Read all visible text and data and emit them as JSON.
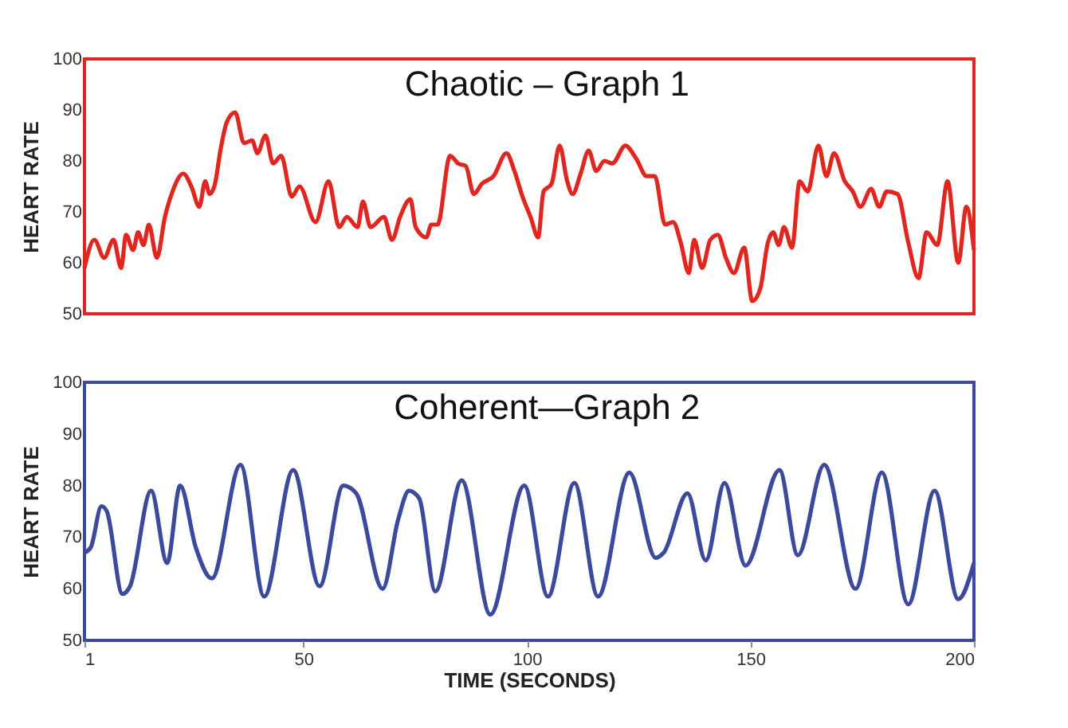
{
  "chart_data": [
    {
      "type": "line",
      "title": "Chaotic – Graph 1",
      "ylabel": "HEART RATE",
      "xlim": [
        1,
        200
      ],
      "ylim": [
        50,
        100
      ],
      "yticks": [
        50,
        60,
        70,
        80,
        90,
        100
      ],
      "grid": false,
      "tick_labels": "y",
      "marker": "none",
      "line_style": "solid",
      "series": [
        {
          "color": "#e0261f",
          "x": [
            1,
            3.2,
            5.4,
            7.5,
            9.2,
            10.3,
            11.9,
            13,
            14.2,
            15.4,
            17.2,
            19,
            20.7,
            23.1,
            24.9,
            26.7,
            28,
            29,
            30.2,
            31.4,
            32.8,
            34.7,
            36.7,
            38.5,
            39.7,
            41.5,
            43.2,
            45,
            47.4,
            49.1,
            52.7,
            55.6,
            58,
            59.7,
            62.1,
            63.3,
            65,
            68,
            69.8,
            71.6,
            73.9,
            75.1,
            77.5,
            78.6,
            80,
            82.8,
            84.6,
            86.3,
            88.1,
            89.9,
            92.5,
            95.4,
            97.2,
            99,
            100.8,
            102.5,
            103.7,
            105.5,
            107.3,
            109,
            110.2,
            112,
            113.8,
            115.5,
            117.3,
            119.1,
            122,
            124.4,
            126.8,
            128.6,
            130.9,
            132.7,
            134.4,
            136.2,
            137.4,
            139.2,
            141,
            142.7,
            144.5,
            146.3,
            148.6,
            150.4,
            152.2,
            153.9,
            155.1,
            156.3,
            157.5,
            159.3,
            161,
            162.8,
            165.2,
            167,
            168.7,
            171.1,
            172.9,
            174.6,
            177,
            178.8,
            180.5,
            182.9,
            185.3,
            187.6,
            189.4,
            191.8,
            194.1,
            196.5,
            198.3,
            200
          ],
          "values": [
            59,
            64.5,
            61,
            64.5,
            59,
            65.5,
            62.5,
            66,
            63.5,
            67.5,
            61,
            69,
            74,
            77.5,
            75,
            71,
            76,
            73.5,
            75.5,
            82,
            87.5,
            89.5,
            83.5,
            84,
            81.5,
            85,
            79.5,
            81,
            73,
            75,
            68,
            76,
            67,
            69,
            67,
            72,
            67,
            69,
            64.5,
            69,
            72.5,
            67,
            65,
            67.5,
            67.5,
            81,
            79.5,
            79,
            73.5,
            75.5,
            77,
            81.5,
            78,
            73,
            69,
            65,
            74,
            75.5,
            83,
            76,
            73.5,
            77.5,
            82,
            78,
            80,
            79.5,
            83,
            80.5,
            77,
            77,
            67.5,
            68,
            64,
            58,
            64.5,
            59,
            64.5,
            65.5,
            61,
            58,
            63,
            52.5,
            55,
            64,
            66,
            63.5,
            67,
            63,
            76,
            74,
            83,
            77,
            81.5,
            76,
            74,
            71,
            74.5,
            71,
            74,
            73.5,
            64,
            57,
            66,
            63.5,
            76,
            60,
            71,
            62.5
          ]
        }
      ]
    },
    {
      "type": "line",
      "title": "Coherent—Graph 2",
      "xlabel": "TIME (SECONDS)",
      "ylabel": "HEART RATE",
      "xlim": [
        1,
        200
      ],
      "xticks": [
        1,
        50,
        100,
        150,
        {
          "value": 200,
          "label": "200"
        }
      ],
      "ylim": [
        50,
        100
      ],
      "yticks": [
        50,
        60,
        70,
        80,
        90,
        100
      ],
      "grid": false,
      "marker": "none",
      "line_style": "solid",
      "series": [
        {
          "color": "#3b4a9c",
          "x": [
            1,
            2.4,
            4.8,
            6,
            9.5,
            11.2,
            15.9,
            19.5,
            22.4,
            25.9,
            29.5,
            35.9,
            41.2,
            47.7,
            53.6,
            58.9,
            61.8,
            67.7,
            71.2,
            73.6,
            75.9,
            79.5,
            85.4,
            91.8,
            99.4,
            104.7,
            110.6,
            115.9,
            122.9,
            128.8,
            130.6,
            135.9,
            140,
            144.2,
            148.9,
            156.5,
            160.6,
            166.5,
            173.5,
            179.4,
            185.3,
            191.2,
            196.5,
            200
          ],
          "values": [
            67,
            68,
            76,
            75,
            59,
            60.5,
            79,
            65,
            80,
            68,
            62,
            84,
            58.5,
            83,
            60.5,
            80,
            78.5,
            60,
            73.5,
            79,
            77.5,
            59.5,
            81,
            55,
            80,
            58.5,
            80.5,
            58.5,
            82.5,
            66,
            67,
            78.5,
            65.5,
            80.5,
            64.5,
            83,
            66.5,
            84,
            60,
            82.5,
            57,
            79,
            58,
            65
          ]
        }
      ]
    }
  ]
}
